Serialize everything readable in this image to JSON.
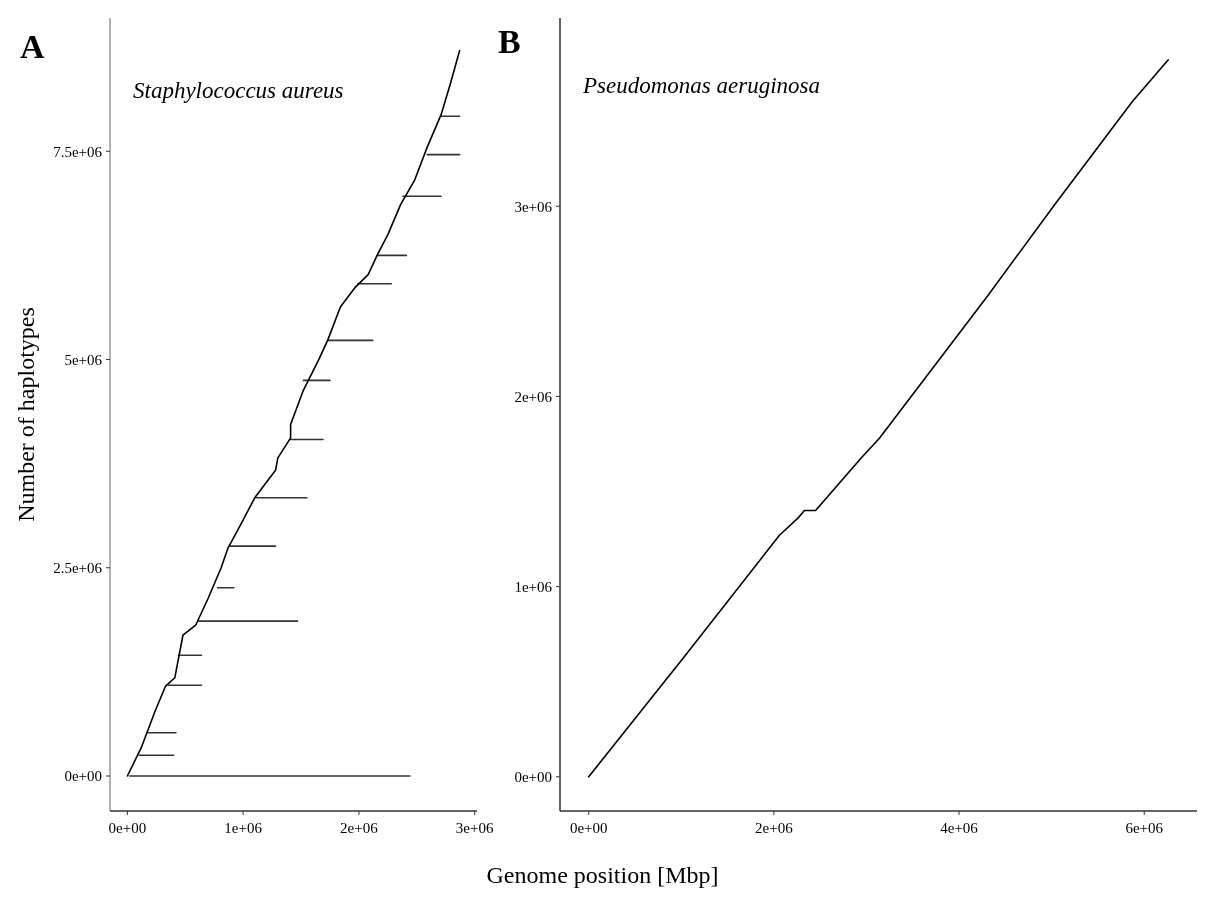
{
  "chart_data": [
    {
      "type": "line",
      "title": "A",
      "subtitle": "Staphylococcus aureus",
      "ylabel": "Number of haplotypes",
      "xlim": [
        -150000,
        3020000
      ],
      "ylim": [
        -420000,
        9100000
      ],
      "xticks": [
        {
          "value": 0,
          "label": "0e+00"
        },
        {
          "value": 1000000,
          "label": "1e+06"
        },
        {
          "value": 2000000,
          "label": "2e+06"
        },
        {
          "value": 3000000,
          "label": "3e+06"
        }
      ],
      "yticks": [
        {
          "value": 0,
          "label": "0e+00"
        },
        {
          "value": 2500000,
          "label": "2.5e+06"
        },
        {
          "value": 5000000,
          "label": "5e+06"
        },
        {
          "value": 7500000,
          "label": "7.5e+06"
        }
      ],
      "series": [
        {
          "color": "#333333",
          "x": [
            20000,
            2440000
          ],
          "values": [
            0,
            0
          ]
        },
        {
          "color": "#333333",
          "x": [
            100000,
            400000
          ],
          "values": [
            250000,
            250000
          ]
        },
        {
          "color": "#333333",
          "x": [
            180000,
            420000
          ],
          "values": [
            520000,
            520000
          ]
        },
        {
          "color": "#333333",
          "x": [
            350000,
            640000
          ],
          "values": [
            1090000,
            1090000
          ]
        },
        {
          "color": "#333333",
          "x": [
            440000,
            640000
          ],
          "values": [
            1450000,
            1450000
          ]
        },
        {
          "color": "#333333",
          "x": [
            610000,
            1470000
          ],
          "values": [
            1860000,
            1860000
          ]
        },
        {
          "color": "#333333",
          "x": [
            780000,
            920000
          ],
          "values": [
            2260000,
            2260000
          ]
        },
        {
          "color": "#333333",
          "x": [
            890000,
            1280000
          ],
          "values": [
            2760000,
            2760000
          ]
        },
        {
          "color": "#333333",
          "x": [
            1100000,
            1550000
          ],
          "values": [
            3340000,
            3340000
          ]
        },
        {
          "color": "#333333",
          "x": [
            1410000,
            1690000
          ],
          "values": [
            4040000,
            4040000
          ]
        },
        {
          "color": "#333333",
          "x": [
            1520000,
            1750000
          ],
          "values": [
            4750000,
            4750000
          ]
        },
        {
          "color": "#333333",
          "x": [
            1730000,
            2120000
          ],
          "values": [
            5230000,
            5230000
          ]
        },
        {
          "color": "#333333",
          "x": [
            1990000,
            2280000
          ],
          "values": [
            5910000,
            5910000
          ]
        },
        {
          "color": "#333333",
          "x": [
            2160000,
            2410000
          ],
          "values": [
            6250000,
            6250000
          ]
        },
        {
          "color": "#333333",
          "x": [
            2380000,
            2710000
          ],
          "values": [
            6960000,
            6960000
          ]
        },
        {
          "color": "#333333",
          "x": [
            2590000,
            2870000
          ],
          "values": [
            7460000,
            7460000
          ]
        },
        {
          "color": "#333333",
          "x": [
            2710000,
            2870000
          ],
          "values": [
            7920000,
            7920000
          ]
        },
        {
          "color": "#000000",
          "x": [
            0,
            120000,
            240000,
            330000,
            410000,
            480000,
            590000,
            700000,
            810000,
            870000,
            980000,
            1100000,
            1280000,
            1300000,
            1410000,
            1410000,
            1520000,
            1650000,
            1730000,
            1840000,
            1970000,
            2080000,
            2160000,
            2250000,
            2360000,
            2480000,
            2590000,
            2710000,
            2790000,
            2870000
          ],
          "values": [
            0,
            340000,
            780000,
            1080000,
            1180000,
            1690000,
            1810000,
            2140000,
            2500000,
            2740000,
            3020000,
            3340000,
            3670000,
            3820000,
            4060000,
            4220000,
            4630000,
            4990000,
            5230000,
            5630000,
            5870000,
            6020000,
            6260000,
            6500000,
            6860000,
            7150000,
            7550000,
            7940000,
            8310000,
            8710000
          ]
        }
      ]
    },
    {
      "type": "line",
      "title": "B",
      "subtitle": "Pseudomonas aeruginosa",
      "xlabel": "Genome position [Mbp]",
      "xlim": [
        -310000,
        6570000
      ],
      "ylim": [
        -180000,
        3990000
      ],
      "xticks": [
        {
          "value": 0,
          "label": "0e+00"
        },
        {
          "value": 2000000,
          "label": "2e+06"
        },
        {
          "value": 4000000,
          "label": "4e+06"
        },
        {
          "value": 6000000,
          "label": "6e+06"
        }
      ],
      "yticks": [
        {
          "value": 0,
          "label": "0e+00"
        },
        {
          "value": 1000000,
          "label": "1e+06"
        },
        {
          "value": 2000000,
          "label": "2e+06"
        },
        {
          "value": 3000000,
          "label": "3e+06"
        }
      ],
      "series": [
        {
          "color": "#000000",
          "x": [
            0,
            1030000,
            2060000,
            2260000,
            2330000,
            2450000,
            2950000,
            3140000,
            4310000,
            5050000,
            5870000,
            6260000
          ],
          "values": [
            0,
            630000,
            1270000,
            1360000,
            1400000,
            1400000,
            1680000,
            1780000,
            2530000,
            3020000,
            3550000,
            3770000
          ]
        }
      ]
    }
  ]
}
